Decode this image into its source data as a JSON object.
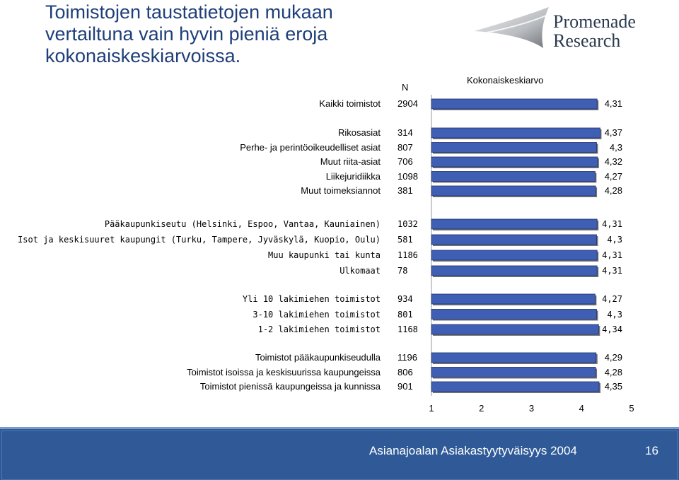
{
  "title": "Toimistojen taustatietojen mukaan vertailtuna vain hyvin pieniä eroja kokonaiskeskiarvoissa.",
  "logo": {
    "line1": "Promenade",
    "line2": "Research"
  },
  "footer": {
    "text": "Asianajoalan Asiakastyytyväisyys 2004",
    "page": "16"
  },
  "colors": {
    "bar": "#3f5fb5",
    "bar_border": "#1f2f6a",
    "footer": "#2f5a97"
  },
  "chart_data": {
    "type": "bar",
    "orientation": "horizontal",
    "n_header": "N",
    "value_header": "Kokonaiskeskiarvo",
    "xlim": [
      1,
      5
    ],
    "xticks": [
      "1",
      "2",
      "3",
      "4",
      "5"
    ],
    "groups": [
      {
        "rows": [
          {
            "label": "Kaikki toimistot",
            "n": "2904",
            "value": 4.31,
            "value_label": "4,31"
          }
        ]
      },
      {
        "rows": [
          {
            "label": "Rikosasiat",
            "n": "314",
            "value": 4.37,
            "value_label": "4,37"
          },
          {
            "label": "Perhe- ja perintöoikeudelliset asiat",
            "n": "807",
            "value": 4.3,
            "value_label": "4,3"
          },
          {
            "label": "Muut riita-asiat",
            "n": "706",
            "value": 4.32,
            "value_label": "4,32"
          },
          {
            "label": "Liikejuridiikka",
            "n": "1098",
            "value": 4.27,
            "value_label": "4,27"
          },
          {
            "label": "Muut toimeksiannot",
            "n": "381",
            "value": 4.28,
            "value_label": "4,28"
          }
        ]
      },
      {
        "rows": [
          {
            "label": "Pääkaupunkiseutu (Helsinki, Espoo, Vantaa, Kauniainen)",
            "n": "1032",
            "value": 4.31,
            "value_label": "4,31"
          },
          {
            "label": "Isot ja keskisuuret kaupungit (Turku, Tampere, Jyväskylä, Kuopio, Oulu)",
            "n": "581",
            "value": 4.3,
            "value_label": "4,3"
          },
          {
            "label": "Muu kaupunki tai kunta",
            "n": "1186",
            "value": 4.31,
            "value_label": "4,31"
          },
          {
            "label": "Ulkomaat",
            "n": "78",
            "value": 4.31,
            "value_label": "4,31"
          }
        ]
      },
      {
        "rows": [
          {
            "label": "Yli 10 lakimiehen toimistot",
            "n": "934",
            "value": 4.27,
            "value_label": "4,27"
          },
          {
            "label": "3-10 lakimiehen toimistot",
            "n": "801",
            "value": 4.3,
            "value_label": "4,3"
          },
          {
            "label": "1-2 lakimiehen toimistot",
            "n": "1168",
            "value": 4.34,
            "value_label": "4,34"
          }
        ]
      },
      {
        "rows": [
          {
            "label": "Toimistot pääkaupunkiseudulla",
            "n": "1196",
            "value": 4.29,
            "value_label": "4,29"
          },
          {
            "label": "Toimistot isoissa ja keskisuurissa kaupungeissa",
            "n": "806",
            "value": 4.28,
            "value_label": "4,28"
          },
          {
            "label": "Toimistot pienissä kaupungeissa ja kunnissa",
            "n": "901",
            "value": 4.35,
            "value_label": "4,35"
          }
        ]
      }
    ]
  }
}
